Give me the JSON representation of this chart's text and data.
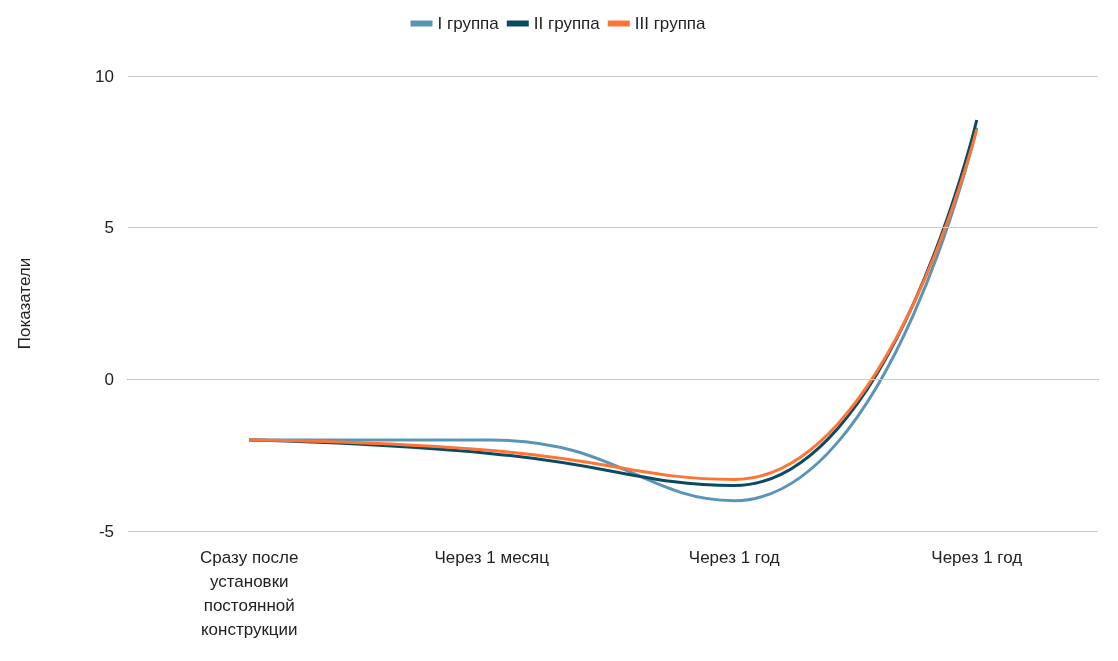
{
  "chart_data": {
    "type": "line",
    "ylabel": "Показатели",
    "categories": [
      "Сразу после установки постоянной конструкции",
      "Через 1 месяц",
      "Через 1 год",
      "Через 1 год"
    ],
    "series": [
      {
        "name": "I группа",
        "color": "#5b95b5",
        "values": [
          -2,
          -2,
          -4,
          8.3
        ]
      },
      {
        "name": "II группа",
        "color": "#0b4a63",
        "values": [
          -2,
          -2.45,
          -3.5,
          8.55
        ]
      },
      {
        "name": "III группа",
        "color": "#ff7434",
        "values": [
          -2,
          -2.35,
          -3.3,
          8.25
        ]
      }
    ],
    "ylim": [
      -5,
      10
    ],
    "yticks": [
      -5,
      0,
      5,
      10
    ],
    "grid": "y",
    "legend": "top",
    "marker": "none",
    "line_style": "solid"
  }
}
